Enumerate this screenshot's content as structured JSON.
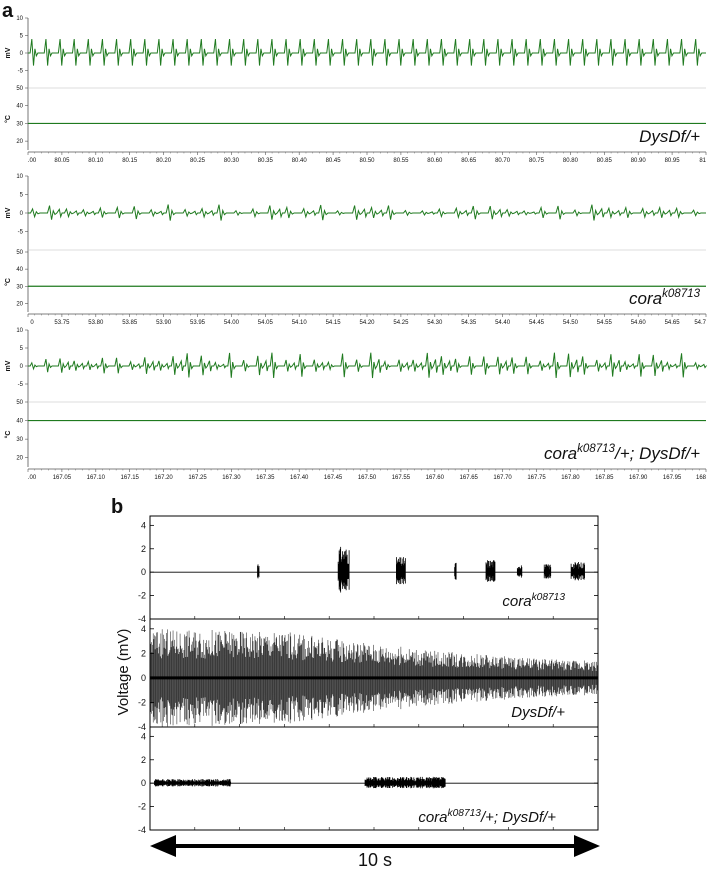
{
  "panel_labels": {
    "a": "a",
    "b": "b"
  },
  "units": {
    "mv": "mV",
    "degc": "°C"
  },
  "colors": {
    "trace_a": "#1f7a1f",
    "trace_b": "#000000",
    "axis": "#555555"
  },
  "chart_data": [
    {
      "type": "line",
      "panel": "a",
      "row": 1,
      "genotype": {
        "main": "DysDf/+",
        "sup": "",
        "tail": ""
      },
      "voltage": {
        "ylim": [
          -10,
          10
        ],
        "yticks": [
          -5,
          0,
          5,
          10
        ],
        "pattern": "regular",
        "spike_count": 48,
        "amplitude_mV": 4
      },
      "temperature": {
        "ylim": [
          15,
          50
        ],
        "yticks": [
          20,
          30,
          40,
          50
        ],
        "value": 30
      },
      "xlim": [
        80.0,
        81.0
      ],
      "xtick_labels": [
        ".00",
        "80.05",
        "80.10",
        "80.15",
        "80.20",
        "80.25",
        "80.30",
        "80.35",
        "80.40",
        "80.45",
        "80.50",
        "80.55",
        "80.60",
        "80.65",
        "80.70",
        "80.75",
        "80.80",
        "80.85",
        "80.90",
        "80.95",
        "81"
      ]
    },
    {
      "type": "line",
      "panel": "a",
      "row": 2,
      "genotype": {
        "main": "cora",
        "sup": "k08713",
        "tail": ""
      },
      "voltage": {
        "ylim": [
          -10,
          10
        ],
        "yticks": [
          -5,
          0,
          5,
          10
        ],
        "pattern": "irregular",
        "spike_count": 40,
        "amplitude_mV": 1.5
      },
      "temperature": {
        "ylim": [
          15,
          50
        ],
        "yticks": [
          20,
          30,
          40,
          50
        ],
        "value": 30
      },
      "xlim": [
        53.7,
        54.7
      ],
      "xtick_labels": [
        "0",
        "53.75",
        "53.80",
        "53.85",
        "53.90",
        "53.95",
        "54.00",
        "54.05",
        "54.10",
        "54.15",
        "54.20",
        "54.25",
        "54.30",
        "54.35",
        "54.40",
        "54.45",
        "54.50",
        "54.55",
        "54.60",
        "54.65",
        "54.7"
      ]
    },
    {
      "type": "line",
      "panel": "a",
      "row": 3,
      "genotype": {
        "main": "cora",
        "sup": "k08713",
        "tail": "/+; DysDf/+"
      },
      "voltage": {
        "ylim": [
          -10,
          10
        ],
        "yticks": [
          -5,
          0,
          5,
          10
        ],
        "pattern": "irregular",
        "spike_count": 48,
        "amplitude_mV": 2.5
      },
      "temperature": {
        "ylim": [
          15,
          50
        ],
        "yticks": [
          20,
          30,
          40,
          50
        ],
        "value": 40
      },
      "xlim": [
        167.0,
        168.0
      ],
      "xtick_labels": [
        ".00",
        "167.05",
        "167.10",
        "167.15",
        "167.20",
        "167.25",
        "167.30",
        "167.35",
        "167.40",
        "167.45",
        "167.50",
        "167.55",
        "167.60",
        "167.65",
        "167.70",
        "167.75",
        "167.80",
        "167.85",
        "167.90",
        "167.95",
        "168"
      ]
    },
    {
      "type": "line",
      "panel": "b",
      "row": 1,
      "genotype": {
        "main": "cora",
        "sup": "k08713",
        "tail": ""
      },
      "ylim": [
        -4,
        4.8
      ],
      "yticks": [
        -4,
        -2,
        0,
        2,
        4
      ],
      "bursts": [
        [
          0.24,
          0.004,
          0.9
        ],
        [
          0.42,
          0.025,
          2.2
        ],
        [
          0.55,
          0.02,
          1.3
        ],
        [
          0.68,
          0.004,
          0.9
        ],
        [
          0.75,
          0.02,
          1.1
        ],
        [
          0.82,
          0.01,
          0.8
        ],
        [
          0.88,
          0.015,
          0.7
        ],
        [
          0.94,
          0.03,
          0.9
        ]
      ]
    },
    {
      "type": "line",
      "panel": "b",
      "row": 2,
      "genotype": {
        "main": "DysDf/+",
        "sup": "",
        "tail": ""
      },
      "ylim": [
        -4,
        4.8
      ],
      "yticks": [
        -4,
        -2,
        0,
        2,
        4
      ],
      "envelope": [
        [
          0.0,
          4.0
        ],
        [
          0.3,
          3.8
        ],
        [
          0.45,
          3.0
        ],
        [
          0.65,
          2.2
        ],
        [
          0.85,
          1.6
        ],
        [
          1.0,
          1.4
        ]
      ]
    },
    {
      "type": "line",
      "panel": "b",
      "row": 3,
      "genotype": {
        "main": "cora",
        "sup": "k08713",
        "tail": "/+; DysDf/+"
      },
      "ylim": [
        -4,
        4.8
      ],
      "yticks": [
        -4,
        -2,
        0,
        2,
        4
      ],
      "bursts": [
        [
          0.01,
          0.17,
          0.35
        ],
        [
          0.48,
          0.18,
          0.55
        ]
      ]
    }
  ],
  "panel_b": {
    "ylabel": "Voltage (mV)",
    "scale_bar": "10 s"
  }
}
